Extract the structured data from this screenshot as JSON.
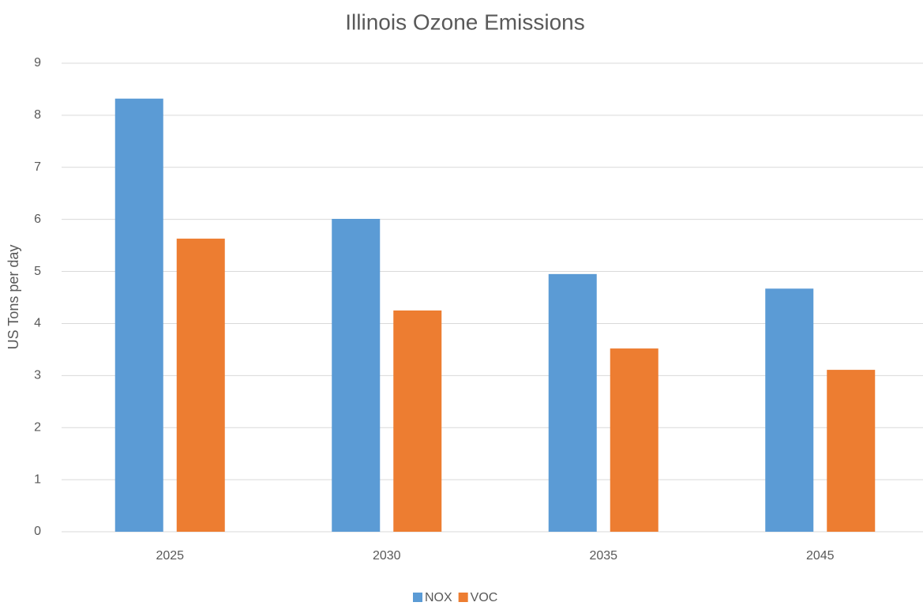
{
  "chart_data": {
    "type": "bar",
    "title": "Illinois Ozone Emissions",
    "y_label": "US Tons per day",
    "categories": [
      "2025",
      "2030",
      "2035",
      "2045"
    ],
    "series": [
      {
        "name": "NOX",
        "color": "#5b9bd5",
        "values": [
          8.32,
          6.01,
          4.95,
          4.67
        ]
      },
      {
        "name": "VOC",
        "color": "#ed7d31",
        "values": [
          5.63,
          4.25,
          3.52,
          3.11
        ]
      }
    ],
    "ylim": [
      0,
      9
    ],
    "yticks": [
      0,
      1,
      2,
      3,
      4,
      5,
      6,
      7,
      8,
      9
    ],
    "grid": true,
    "legend": "bottom"
  }
}
